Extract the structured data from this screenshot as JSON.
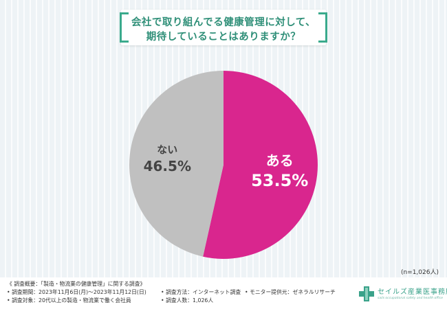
{
  "title": {
    "line1": "会社で取り組んでる健康管理に対して、",
    "line2": "期待していることはありますか？"
  },
  "chart_data": {
    "type": "pie",
    "slices": [
      {
        "label": "ある",
        "value": 53.5,
        "display": "53.5%",
        "color": "#d9268e"
      },
      {
        "label": "ない",
        "value": 46.5,
        "display": "46.5%",
        "color": "#c0c0c0"
      }
    ],
    "start": "12 o'clock",
    "direction": "clockwise",
    "note": "(n=1,026人)"
  },
  "footer": {
    "line1": "《 調査概要：「製造・物流業の健康管理」に関する調査》",
    "line2a": "• 調査期間：2023年11月6日(月)～2023年11月12日(日)",
    "line2b": "• 調査方法：インターネット調査",
    "line2c": "• モニター提供元：ゼネラルリサーチ",
    "line3a": "• 調査対象：20代以上の製造・物流業で働く会社員",
    "line3b": "• 調査人数：1,026人"
  },
  "logo": {
    "name": "セイルズ産業医事務所",
    "subtitle": "sails occupational safety and health office",
    "color": "#3aa28a"
  }
}
